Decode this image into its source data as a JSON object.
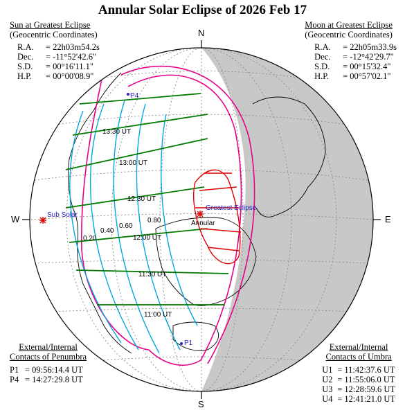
{
  "title": "Annular Solar Eclipse of  2026 Feb 17",
  "sun": {
    "heading": "Sun at Greatest Eclipse",
    "sub": "(Geocentric Coordinates)",
    "rows": [
      {
        "label": "R.A.",
        "value": "= 22h03m54.2s"
      },
      {
        "label": "Dec.",
        "value": "= -11°52'42.6\""
      },
      {
        "label": "S.D.",
        "value": "= 00°16'11.1\""
      },
      {
        "label": "H.P.",
        "value": "= 00°00'08.9\""
      }
    ]
  },
  "moon": {
    "heading": "Moon at Greatest Eclipse",
    "sub": "(Geocentric Coordinates)",
    "rows": [
      {
        "label": "R.A.",
        "value": "= 22h05m33.9s"
      },
      {
        "label": "Dec.",
        "value": "= -12°42'29.7\""
      },
      {
        "label": "S.D.",
        "value": "= 00°15'32.4\""
      },
      {
        "label": "H.P.",
        "value": "= 00°57'02.1\""
      }
    ]
  },
  "penumbra": {
    "heading1": "External/Internal",
    "heading2": "Contacts of Penumbra",
    "rows": [
      {
        "label": "P1",
        "value": "= 09:56:14.4 UT"
      },
      {
        "label": "P4",
        "value": "= 14:27:29.8 UT"
      }
    ]
  },
  "umbra": {
    "heading1": "External/Internal",
    "heading2": "Contacts of Umbra",
    "rows": [
      {
        "label": "U1",
        "value": "= 11:42:37.6 UT"
      },
      {
        "label": "U2",
        "value": "= 11:55:06.0 UT"
      },
      {
        "label": "U3",
        "value": "= 12:28:59.6 UT"
      },
      {
        "label": "U4",
        "value": "= 12:41:21.0 UT"
      }
    ]
  },
  "compass": {
    "n": "N",
    "s": "S",
    "e": "E",
    "w": "W"
  },
  "map_labels": {
    "sub_solar": "Sub Solar",
    "greatest_eclipse": "Greatest Eclipse",
    "annular": "Annular",
    "p1": "P1",
    "p4": "P4"
  },
  "time_labels": [
    "13:30 UT",
    "13:00 UT",
    "12:30 UT",
    "12:00 UT",
    "11:30 UT",
    "11:00 UT"
  ],
  "magnitude_labels": [
    "0.20",
    "0.40",
    "0.60",
    "0.80"
  ],
  "colors": {
    "penumbra_limits": "#e8008a",
    "magnitude_curves": "#00a8e0",
    "time_lines": "#007a00",
    "umbral_path": "#e00000",
    "night": "#c8c8c8",
    "grid": "#888888",
    "label_blue": "#2020c0"
  }
}
